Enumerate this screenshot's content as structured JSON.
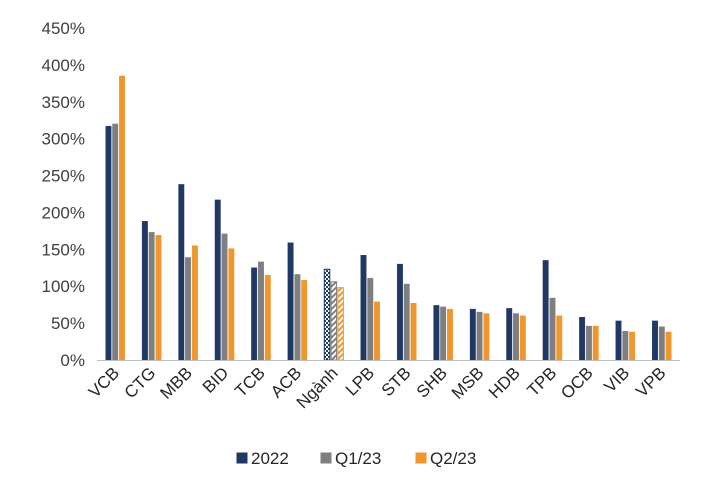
{
  "chart_data": {
    "type": "bar",
    "title": "",
    "xlabel": "",
    "ylabel": "",
    "ylim": [
      0,
      450
    ],
    "yticks": [
      0,
      50,
      100,
      150,
      200,
      250,
      300,
      350,
      400,
      450
    ],
    "y_tick_suffix": "%",
    "grid": false,
    "legend_position": "bottom",
    "categories": [
      "VCB",
      "CTG",
      "MBB",
      "BID",
      "TCB",
      "ACB",
      "Ngành",
      "LPB",
      "STB",
      "SHB",
      "MSB",
      "HDB",
      "TPB",
      "OCB",
      "VIB",
      "VPB"
    ],
    "highlight_category": "Ngành",
    "series": [
      {
        "name": "2022",
        "color": "#1f3864",
        "values": [
          317,
          188,
          238,
          217,
          125,
          159,
          123,
          142,
          130,
          74,
          69,
          70,
          135,
          58,
          53,
          53
        ]
      },
      {
        "name": "Q1/23",
        "color": "#7f7f7f",
        "values": [
          320,
          173,
          139,
          171,
          133,
          116,
          106,
          111,
          103,
          72,
          65,
          63,
          84,
          46,
          39,
          45
        ]
      },
      {
        "name": "Q2/23",
        "color": "#f0962c",
        "values": [
          385,
          169,
          155,
          151,
          115,
          108,
          98,
          79,
          77,
          69,
          63,
          60,
          60,
          46,
          38,
          38
        ]
      }
    ]
  }
}
